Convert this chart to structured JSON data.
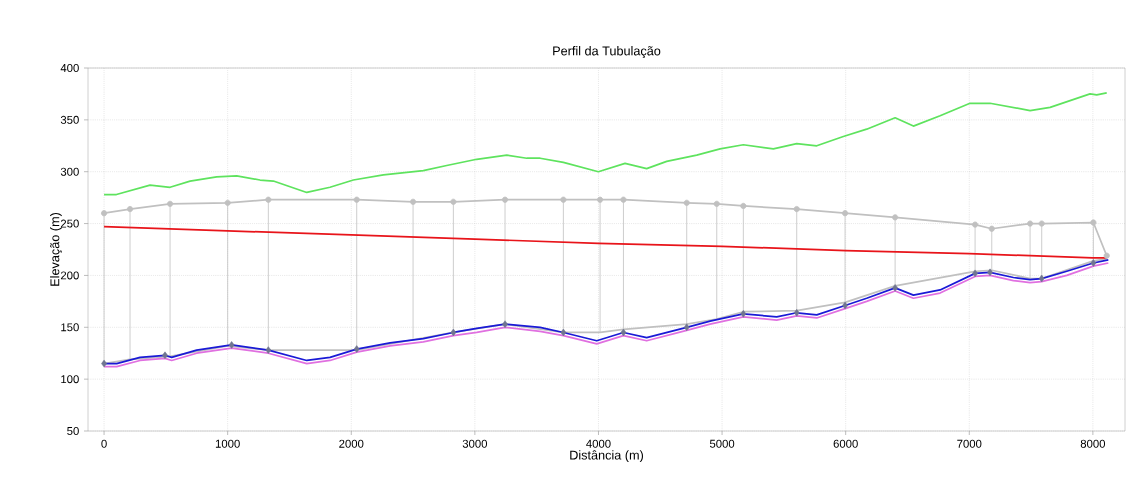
{
  "chart_data": {
    "type": "line",
    "title": "Perfil da Tubulação",
    "xlabel": "Distância (m)",
    "ylabel": "Elevação (m)",
    "xlim": [
      -130,
      8260
    ],
    "ylim": [
      50,
      400
    ],
    "xticks": [
      0,
      1000,
      2000,
      3000,
      4000,
      5000,
      6000,
      7000,
      8000
    ],
    "yticks": [
      50,
      100,
      150,
      200,
      250,
      300,
      350,
      400
    ],
    "grid": true,
    "marker": "none",
    "line_style": "solid",
    "series": [
      {
        "color": "#5ee35e",
        "x": [
          0,
          100,
          372,
          534,
          696,
          911,
          1073,
          1262,
          1370,
          1640,
          1828,
          2017,
          2260,
          2583,
          2772,
          3015,
          3258,
          3420,
          3528,
          3716,
          3999,
          4215,
          4390,
          4552,
          4795,
          4984,
          5172,
          5415,
          5604,
          5766,
          5981,
          6170,
          6400,
          6548,
          6764,
          7006,
          7168,
          7492,
          7654,
          7977,
          8031,
          8112
        ],
        "values": [
          278,
          278,
          287,
          285,
          291,
          295,
          296,
          292,
          291,
          280,
          285,
          292,
          297,
          301,
          306,
          312,
          316,
          313,
          313,
          309,
          300,
          308,
          303,
          310,
          316,
          322,
          326,
          322,
          327,
          325,
          334,
          341,
          352,
          344,
          354,
          366,
          366,
          359,
          362,
          375,
          374,
          376
        ]
      },
      {
        "color": "#c0c0c0",
        "x": [
          0,
          210,
          534,
          1000,
          1329,
          2044,
          2500,
          2826,
          3244,
          3716,
          4013,
          4202,
          4714,
          4957,
          5172,
          5604,
          5995,
          6400,
          7047,
          7182,
          7492,
          7586,
          8004,
          8112
        ],
        "values": [
          260,
          264,
          269,
          270,
          273,
          273,
          271,
          271,
          273,
          273,
          273,
          273,
          270,
          269,
          267,
          264,
          260,
          256,
          249,
          245,
          250,
          250,
          251,
          219
        ],
        "errors": [
          [
            115,
            260
          ],
          [
            119,
            264
          ],
          [
            122,
            269
          ],
          [
            132,
            270
          ],
          [
            128,
            273
          ],
          [
            128,
            273
          ],
          [
            138,
            271
          ],
          [
            145,
            271
          ],
          [
            153,
            273
          ],
          [
            145,
            273
          ],
          [
            145,
            273
          ],
          [
            148,
            273
          ],
          [
            153,
            270
          ],
          [
            158,
            269
          ],
          [
            165,
            267
          ],
          [
            166,
            264
          ],
          [
            174,
            260
          ],
          [
            190,
            256
          ],
          [
            204,
            249
          ],
          [
            205,
            245
          ],
          [
            197,
            250
          ],
          [
            197,
            250
          ],
          [
            214,
            251
          ],
          [
            216,
            219
          ]
        ]
      },
      {
        "color": "#c0c0c0",
        "x": [
          0,
          210,
          534,
          1000,
          1329,
          2044,
          2500,
          2826,
          3244,
          3716,
          4013,
          4202,
          4714,
          4957,
          5172,
          5604,
          5995,
          6400,
          7047,
          7182,
          7492,
          7586,
          8004,
          8112
        ],
        "values": [
          115,
          119,
          122,
          132,
          128,
          128,
          138,
          145,
          153,
          145,
          145,
          148,
          153,
          158,
          165,
          166,
          174,
          190,
          204,
          205,
          197,
          197,
          214,
          216
        ]
      },
      {
        "color": "#e8141a",
        "x": [
          0,
          1000,
          2000,
          3000,
          4000,
          5000,
          6000,
          7000,
          8000,
          8112
        ],
        "values": [
          247,
          243,
          239,
          235,
          231,
          228,
          224,
          221,
          217,
          217
        ]
      },
      {
        "color": "#e070e0",
        "x": [
          0,
          102,
          291,
          493,
          547,
          749,
          1032,
          1329,
          1640,
          1828,
          2044,
          2314,
          2583,
          2826,
          3015,
          3244,
          3528,
          3716,
          3986,
          4202,
          4390,
          4714,
          4903,
          5172,
          5442,
          5604,
          5766,
          5995,
          6170,
          6400,
          6548,
          6764,
          7047,
          7168,
          7357,
          7492,
          7586,
          7789,
          8004,
          8125
        ],
        "values": [
          112,
          112,
          118,
          120,
          118,
          125,
          130,
          125,
          115,
          118,
          126,
          132,
          136,
          142,
          145,
          150,
          146,
          142,
          134,
          142,
          137,
          147,
          153,
          160,
          157,
          161,
          159,
          168,
          175,
          185,
          178,
          183,
          199,
          200,
          195,
          193,
          194,
          200,
          209,
          212
        ]
      },
      {
        "color": "#1a1ad6",
        "x": [
          0,
          102,
          291,
          493,
          547,
          749,
          1032,
          1329,
          1640,
          1828,
          2044,
          2314,
          2583,
          2826,
          3015,
          3244,
          3528,
          3716,
          3986,
          4202,
          4390,
          4714,
          4903,
          5172,
          5442,
          5604,
          5766,
          5995,
          6170,
          6400,
          6548,
          6764,
          7047,
          7168,
          7357,
          7492,
          7586,
          7789,
          8004,
          8125
        ],
        "values": [
          115,
          115,
          121,
          123,
          121,
          128,
          133,
          128,
          118,
          121,
          129,
          135,
          139,
          145,
          149,
          153,
          150,
          145,
          137,
          145,
          140,
          150,
          156,
          163,
          160,
          164,
          162,
          171,
          178,
          188,
          181,
          186,
          202,
          203,
          198,
          196,
          197,
          204,
          212,
          215
        ]
      },
      {
        "type": "scatter",
        "color": "#707590",
        "marker": "diamond",
        "x": [
          0,
          493,
          1032,
          1329,
          2044,
          2826,
          3244,
          3716,
          4202,
          4714,
          5172,
          5604,
          5995,
          6400,
          7047,
          7168,
          7586,
          8004
        ],
        "values": [
          115,
          123,
          133,
          128,
          129,
          145,
          153,
          145,
          145,
          150,
          163,
          164,
          171,
          188,
          202,
          203,
          197,
          212
        ]
      }
    ]
  }
}
